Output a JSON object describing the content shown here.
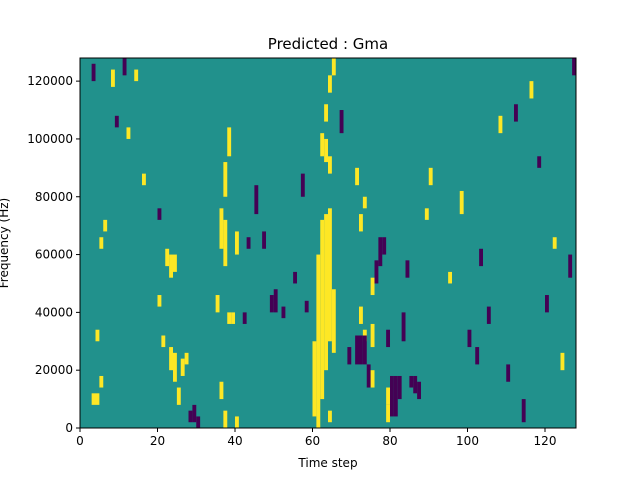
{
  "chart_data": {
    "type": "heatmap",
    "title": "Predicted : Gma",
    "xlabel": "Time step",
    "ylabel": "Frequency (Hz)",
    "xlim": [
      0,
      128
    ],
    "ylim": [
      0,
      128000
    ],
    "x_ticks": [
      0,
      20,
      40,
      60,
      80,
      100,
      120
    ],
    "y_ticks": [
      0,
      20000,
      40000,
      60000,
      80000,
      100000,
      120000
    ],
    "y_tick_labels": [
      "0",
      "20000",
      "40000",
      "60000",
      "80000",
      "100000",
      "120000"
    ],
    "grid": false,
    "legend": "none",
    "levels": {
      "low": "#440154",
      "mid": "#21918c",
      "high": "#fde725"
    },
    "background_level": "mid",
    "cells": [
      {
        "x": 3,
        "y0": 8000,
        "y1": 12000,
        "level": "high"
      },
      {
        "x": 4,
        "y0": 8000,
        "y1": 12000,
        "level": "high"
      },
      {
        "x": 5,
        "y0": 14000,
        "y1": 18000,
        "level": "high"
      },
      {
        "x": 4,
        "y0": 30000,
        "y1": 34000,
        "level": "high"
      },
      {
        "x": 5,
        "y0": 62000,
        "y1": 66000,
        "level": "high"
      },
      {
        "x": 6,
        "y0": 68000,
        "y1": 72000,
        "level": "high"
      },
      {
        "x": 3,
        "y0": 120000,
        "y1": 126000,
        "level": "low"
      },
      {
        "x": 8,
        "y0": 118000,
        "y1": 124000,
        "level": "high"
      },
      {
        "x": 11,
        "y0": 122000,
        "y1": 128000,
        "level": "low"
      },
      {
        "x": 14,
        "y0": 120000,
        "y1": 124000,
        "level": "high"
      },
      {
        "x": 9,
        "y0": 104000,
        "y1": 108000,
        "level": "low"
      },
      {
        "x": 12,
        "y0": 100000,
        "y1": 104000,
        "level": "high"
      },
      {
        "x": 16,
        "y0": 84000,
        "y1": 88000,
        "level": "high"
      },
      {
        "x": 20,
        "y0": 72000,
        "y1": 76000,
        "level": "low"
      },
      {
        "x": 22,
        "y0": 56000,
        "y1": 62000,
        "level": "high"
      },
      {
        "x": 23,
        "y0": 52000,
        "y1": 60000,
        "level": "high"
      },
      {
        "x": 24,
        "y0": 54000,
        "y1": 60000,
        "level": "high"
      },
      {
        "x": 23,
        "y0": 20000,
        "y1": 28000,
        "level": "high"
      },
      {
        "x": 24,
        "y0": 16000,
        "y1": 26000,
        "level": "high"
      },
      {
        "x": 25,
        "y0": 8000,
        "y1": 14000,
        "level": "high"
      },
      {
        "x": 26,
        "y0": 18000,
        "y1": 24000,
        "level": "high"
      },
      {
        "x": 27,
        "y0": 22000,
        "y1": 26000,
        "level": "high"
      },
      {
        "x": 28,
        "y0": 2000,
        "y1": 6000,
        "level": "low"
      },
      {
        "x": 29,
        "y0": 2000,
        "y1": 8000,
        "level": "low"
      },
      {
        "x": 30,
        "y0": 0,
        "y1": 4000,
        "level": "low"
      },
      {
        "x": 21,
        "y0": 28000,
        "y1": 32000,
        "level": "high"
      },
      {
        "x": 20,
        "y0": 42000,
        "y1": 46000,
        "level": "high"
      },
      {
        "x": 35,
        "y0": 40000,
        "y1": 46000,
        "level": "high"
      },
      {
        "x": 36,
        "y0": 10000,
        "y1": 16000,
        "level": "high"
      },
      {
        "x": 36,
        "y0": 62000,
        "y1": 76000,
        "level": "high"
      },
      {
        "x": 37,
        "y0": 56000,
        "y1": 72000,
        "level": "high"
      },
      {
        "x": 38,
        "y0": 36000,
        "y1": 40000,
        "level": "high"
      },
      {
        "x": 39,
        "y0": 36000,
        "y1": 40000,
        "level": "high"
      },
      {
        "x": 37,
        "y0": 80000,
        "y1": 92000,
        "level": "high"
      },
      {
        "x": 38,
        "y0": 94000,
        "y1": 104000,
        "level": "high"
      },
      {
        "x": 37,
        "y0": 0,
        "y1": 6000,
        "level": "high"
      },
      {
        "x": 40,
        "y0": 0,
        "y1": 4000,
        "level": "high"
      },
      {
        "x": 40,
        "y0": 60000,
        "y1": 68000,
        "level": "high"
      },
      {
        "x": 42,
        "y0": 36000,
        "y1": 40000,
        "level": "low"
      },
      {
        "x": 43,
        "y0": 62000,
        "y1": 66000,
        "level": "low"
      },
      {
        "x": 45,
        "y0": 74000,
        "y1": 84000,
        "level": "low"
      },
      {
        "x": 47,
        "y0": 62000,
        "y1": 68000,
        "level": "low"
      },
      {
        "x": 49,
        "y0": 40000,
        "y1": 46000,
        "level": "low"
      },
      {
        "x": 50,
        "y0": 40000,
        "y1": 48000,
        "level": "low"
      },
      {
        "x": 52,
        "y0": 38000,
        "y1": 42000,
        "level": "low"
      },
      {
        "x": 55,
        "y0": 50000,
        "y1": 54000,
        "level": "low"
      },
      {
        "x": 57,
        "y0": 80000,
        "y1": 88000,
        "level": "low"
      },
      {
        "x": 58,
        "y0": 40000,
        "y1": 44000,
        "level": "low"
      },
      {
        "x": 60,
        "y0": 4000,
        "y1": 30000,
        "level": "high"
      },
      {
        "x": 61,
        "y0": 0,
        "y1": 60000,
        "level": "high"
      },
      {
        "x": 62,
        "y0": 10000,
        "y1": 72000,
        "level": "high"
      },
      {
        "x": 63,
        "y0": 20000,
        "y1": 74000,
        "level": "high"
      },
      {
        "x": 64,
        "y0": 30000,
        "y1": 76000,
        "level": "high"
      },
      {
        "x": 65,
        "y0": 26000,
        "y1": 48000,
        "level": "high"
      },
      {
        "x": 64,
        "y0": 2000,
        "y1": 6000,
        "level": "high"
      },
      {
        "x": 62,
        "y0": 94000,
        "y1": 102000,
        "level": "high"
      },
      {
        "x": 63,
        "y0": 92000,
        "y1": 100000,
        "level": "high"
      },
      {
        "x": 64,
        "y0": 88000,
        "y1": 94000,
        "level": "high"
      },
      {
        "x": 63,
        "y0": 106000,
        "y1": 112000,
        "level": "high"
      },
      {
        "x": 64,
        "y0": 116000,
        "y1": 122000,
        "level": "high"
      },
      {
        "x": 65,
        "y0": 122000,
        "y1": 128000,
        "level": "high"
      },
      {
        "x": 67,
        "y0": 102000,
        "y1": 110000,
        "level": "low"
      },
      {
        "x": 69,
        "y0": 22000,
        "y1": 28000,
        "level": "low"
      },
      {
        "x": 72,
        "y0": 36000,
        "y1": 42000,
        "level": "high"
      },
      {
        "x": 73,
        "y0": 30000,
        "y1": 34000,
        "level": "high"
      },
      {
        "x": 72,
        "y0": 68000,
        "y1": 74000,
        "level": "high"
      },
      {
        "x": 73,
        "y0": 76000,
        "y1": 80000,
        "level": "high"
      },
      {
        "x": 71,
        "y0": 84000,
        "y1": 90000,
        "level": "high"
      },
      {
        "x": 71,
        "y0": 22000,
        "y1": 32000,
        "level": "low"
      },
      {
        "x": 72,
        "y0": 22000,
        "y1": 32000,
        "level": "low"
      },
      {
        "x": 73,
        "y0": 22000,
        "y1": 32000,
        "level": "low"
      },
      {
        "x": 74,
        "y0": 14000,
        "y1": 22000,
        "level": "low"
      },
      {
        "x": 75,
        "y0": 46000,
        "y1": 52000,
        "level": "high"
      },
      {
        "x": 75,
        "y0": 28000,
        "y1": 36000,
        "level": "high"
      },
      {
        "x": 75,
        "y0": 14000,
        "y1": 20000,
        "level": "high"
      },
      {
        "x": 76,
        "y0": 50000,
        "y1": 58000,
        "level": "low"
      },
      {
        "x": 77,
        "y0": 56000,
        "y1": 66000,
        "level": "low"
      },
      {
        "x": 78,
        "y0": 60000,
        "y1": 66000,
        "level": "low"
      },
      {
        "x": 79,
        "y0": 8000,
        "y1": 14000,
        "level": "high"
      },
      {
        "x": 79,
        "y0": 28000,
        "y1": 34000,
        "level": "low"
      },
      {
        "x": 79,
        "y0": 2000,
        "y1": 8000,
        "level": "high"
      },
      {
        "x": 80,
        "y0": 4000,
        "y1": 18000,
        "level": "low"
      },
      {
        "x": 81,
        "y0": 4000,
        "y1": 18000,
        "level": "low"
      },
      {
        "x": 82,
        "y0": 10000,
        "y1": 18000,
        "level": "low"
      },
      {
        "x": 83,
        "y0": 30000,
        "y1": 40000,
        "level": "low"
      },
      {
        "x": 84,
        "y0": 52000,
        "y1": 58000,
        "level": "low"
      },
      {
        "x": 85,
        "y0": 14000,
        "y1": 18000,
        "level": "low"
      },
      {
        "x": 86,
        "y0": 12000,
        "y1": 18000,
        "level": "low"
      },
      {
        "x": 87,
        "y0": 10000,
        "y1": 16000,
        "level": "low"
      },
      {
        "x": 89,
        "y0": 72000,
        "y1": 76000,
        "level": "high"
      },
      {
        "x": 90,
        "y0": 84000,
        "y1": 90000,
        "level": "high"
      },
      {
        "x": 95,
        "y0": 50000,
        "y1": 54000,
        "level": "high"
      },
      {
        "x": 98,
        "y0": 74000,
        "y1": 82000,
        "level": "high"
      },
      {
        "x": 100,
        "y0": 28000,
        "y1": 34000,
        "level": "low"
      },
      {
        "x": 102,
        "y0": 22000,
        "y1": 28000,
        "level": "low"
      },
      {
        "x": 103,
        "y0": 56000,
        "y1": 62000,
        "level": "low"
      },
      {
        "x": 105,
        "y0": 36000,
        "y1": 42000,
        "level": "low"
      },
      {
        "x": 108,
        "y0": 102000,
        "y1": 108000,
        "level": "high"
      },
      {
        "x": 110,
        "y0": 16000,
        "y1": 22000,
        "level": "low"
      },
      {
        "x": 112,
        "y0": 106000,
        "y1": 112000,
        "level": "low"
      },
      {
        "x": 114,
        "y0": 2000,
        "y1": 10000,
        "level": "low"
      },
      {
        "x": 116,
        "y0": 114000,
        "y1": 120000,
        "level": "high"
      },
      {
        "x": 118,
        "y0": 90000,
        "y1": 94000,
        "level": "low"
      },
      {
        "x": 120,
        "y0": 40000,
        "y1": 46000,
        "level": "low"
      },
      {
        "x": 122,
        "y0": 62000,
        "y1": 66000,
        "level": "high"
      },
      {
        "x": 124,
        "y0": 20000,
        "y1": 26000,
        "level": "high"
      },
      {
        "x": 126,
        "y0": 52000,
        "y1": 60000,
        "level": "low"
      },
      {
        "x": 127,
        "y0": 122000,
        "y1": 128000,
        "level": "low"
      }
    ]
  }
}
